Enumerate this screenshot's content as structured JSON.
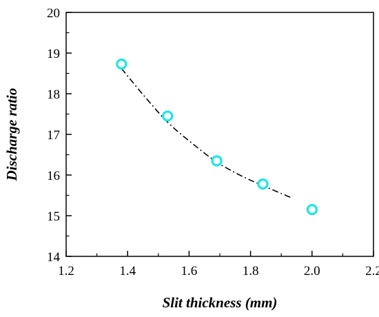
{
  "chart_data": {
    "type": "scatter",
    "title": "",
    "xlabel": "Slit thickness (mm)",
    "ylabel": "Discharge ratio",
    "xlim": [
      1.2,
      2.2
    ],
    "ylim": [
      14,
      20
    ],
    "x_ticks": [
      "1.2",
      "1.4",
      "1.6",
      "1.8",
      "2.0",
      "2.2"
    ],
    "y_ticks": [
      "14",
      "15",
      "16",
      "17",
      "18",
      "19",
      "20"
    ],
    "grid": false,
    "legend": "none",
    "series": [
      {
        "style": "markers",
        "marker": "open-circle",
        "color": "#1ee6e6",
        "x": [
          1.38,
          1.53,
          1.69,
          1.84,
          2.0
        ],
        "y": [
          18.73,
          17.45,
          16.35,
          15.78,
          15.15
        ]
      },
      {
        "style": "dash-dot-line",
        "color": "#000000",
        "x": [
          1.38,
          1.45,
          1.53,
          1.61,
          1.69,
          1.77,
          1.84,
          1.93
        ],
        "y": [
          18.62,
          17.98,
          17.3,
          16.78,
          16.32,
          15.98,
          15.74,
          15.45
        ]
      }
    ]
  }
}
